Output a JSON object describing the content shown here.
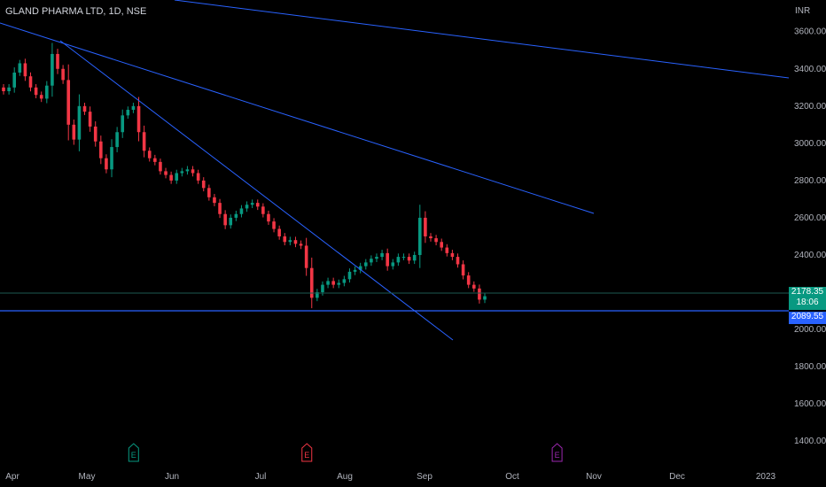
{
  "header": {
    "title": "GLAND PHARMA LTD, 1D, NSE",
    "currency": "INR"
  },
  "price_tags": {
    "last_price": "2178.35",
    "countdown": "18:06",
    "level": "2089.55"
  },
  "events": [
    {
      "label": "E",
      "month": "May",
      "color": "#089981"
    },
    {
      "label": "E",
      "month": "Jul",
      "color": "#f23645"
    },
    {
      "label": "E",
      "month": "Oct",
      "color": "#9c27b0"
    }
  ],
  "colors": {
    "up": "#089981",
    "down": "#f23645",
    "trendline": "#2962ff",
    "background": "#000000"
  },
  "chart_data": {
    "type": "candlestick",
    "title": "GLAND PHARMA LTD, 1D, NSE",
    "ylabel": "INR",
    "x_ticks": [
      "Apr",
      "May",
      "Jun",
      "Jul",
      "Aug",
      "Sep",
      "Oct",
      "Nov",
      "Dec",
      "2023"
    ],
    "y_ticks": [
      "1400.00",
      "1600.00",
      "1800.00",
      "2000.00",
      "2200.00",
      "2400.00",
      "2600.00",
      "2800.00",
      "3000.00",
      "3200.00",
      "3400.00",
      "3600.00"
    ],
    "ylim": [
      1320,
      3770
    ],
    "grid": false,
    "last_price": 2178.35,
    "horizontal_level": 2089.55,
    "close_series": [
      3280,
      3300,
      3380,
      3430,
      3360,
      3300,
      3260,
      3240,
      3310,
      3480,
      3400,
      3340,
      3100,
      3020,
      3200,
      3170,
      3090,
      3010,
      2920,
      2860,
      2980,
      3060,
      3150,
      3180,
      3200,
      3060,
      2960,
      2920,
      2900,
      2850,
      2830,
      2800,
      2840,
      2850,
      2860,
      2840,
      2800,
      2760,
      2710,
      2680,
      2620,
      2560,
      2600,
      2620,
      2650,
      2670,
      2680,
      2660,
      2620,
      2580,
      2540,
      2500,
      2470,
      2480,
      2460,
      2450,
      2330,
      2170,
      2200,
      2240,
      2260,
      2240,
      2250,
      2270,
      2310,
      2320,
      2340,
      2360,
      2380,
      2390,
      2410,
      2340,
      2360,
      2390,
      2390,
      2370,
      2400,
      2600,
      2500,
      2490,
      2470,
      2440,
      2410,
      2390,
      2350,
      2290,
      2240,
      2220,
      2160,
      2178.35
    ]
  }
}
